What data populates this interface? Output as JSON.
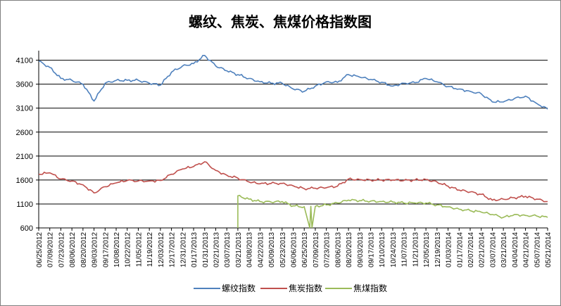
{
  "chart_data": {
    "type": "line",
    "title": "螺纹、焦炭、焦煤价格指数图",
    "xlabel": "",
    "ylabel": "",
    "ylim": [
      600,
      4100
    ],
    "yticks": [
      4100,
      3600,
      3100,
      2600,
      2100,
      1600,
      1100,
      600
    ],
    "grid": true,
    "legend_position": "bottom",
    "x_tick_labels": [
      "06/25/2012",
      "07/09/2012",
      "07/23/2012",
      "08/06/2012",
      "08/20/2012",
      "09/03/2012",
      "09/17/2012",
      "10/08/2012",
      "10/22/2012",
      "11/05/2012",
      "11/19/2012",
      "12/03/2012",
      "12/17/2012",
      "12/31/2012",
      "01/17/2013",
      "01/31/2013",
      "02/21/2013",
      "03/07/2013",
      "03/21/2013",
      "04/08/2013",
      "04/22/2013",
      "05/09/2013",
      "05/23/2013",
      "06/06/2013",
      "06/25/2013",
      "07/09/2013",
      "07/23/2013",
      "08/06/2013",
      "08/20/2013",
      "09/03/2013",
      "09/17/2013",
      "10/10/2013",
      "10/24/2013",
      "11/07/2013",
      "11/21/2013",
      "12/05/2013",
      "12/19/2013",
      "01/03/2014",
      "01/17/2014",
      "02/07/2014",
      "02/21/2014",
      "03/07/2014",
      "03/21/2014",
      "04/04/2014",
      "04/21/2014",
      "05/07/2014",
      "05/21/2014"
    ],
    "series": [
      {
        "name": "螺纹指数",
        "color": "#4f81bd",
        "x_index": [
          0,
          1,
          2,
          3,
          4,
          5,
          6,
          7,
          8,
          9,
          10,
          11,
          12,
          13,
          14,
          15,
          16,
          17,
          18,
          19,
          20,
          21,
          22,
          23,
          24,
          25,
          26,
          27,
          28,
          29,
          30,
          31,
          32,
          33,
          34,
          35,
          36,
          37,
          38,
          39,
          40,
          41,
          42,
          43,
          44,
          45,
          46
        ],
        "values": [
          4080,
          3950,
          3720,
          3680,
          3600,
          3250,
          3620,
          3680,
          3680,
          3680,
          3620,
          3580,
          3850,
          3980,
          4030,
          4200,
          3980,
          3880,
          3800,
          3720,
          3650,
          3620,
          3620,
          3500,
          3450,
          3560,
          3650,
          3640,
          3800,
          3750,
          3700,
          3640,
          3560,
          3620,
          3630,
          3720,
          3650,
          3550,
          3500,
          3450,
          3400,
          3230,
          3230,
          3300,
          3350,
          3200,
          3080
        ]
      },
      {
        "name": "焦炭指数",
        "color": "#c0504d",
        "x_index": [
          0,
          1,
          2,
          3,
          4,
          5,
          6,
          7,
          8,
          9,
          10,
          11,
          12,
          13,
          14,
          15,
          16,
          17,
          18,
          19,
          20,
          21,
          22,
          23,
          24,
          25,
          26,
          27,
          28,
          29,
          30,
          31,
          32,
          33,
          34,
          35,
          36,
          37,
          38,
          39,
          40,
          41,
          42,
          43,
          44,
          45,
          46
        ],
        "values": [
          1720,
          1750,
          1620,
          1580,
          1500,
          1330,
          1460,
          1540,
          1590,
          1580,
          1580,
          1590,
          1720,
          1830,
          1880,
          1980,
          1800,
          1700,
          1640,
          1560,
          1520,
          1530,
          1530,
          1480,
          1420,
          1430,
          1440,
          1470,
          1620,
          1610,
          1600,
          1600,
          1600,
          1590,
          1600,
          1610,
          1560,
          1470,
          1390,
          1350,
          1300,
          1180,
          1200,
          1230,
          1260,
          1200,
          1150
        ]
      },
      {
        "name": "焦煤指数",
        "color": "#9bbb59",
        "x_index": [
          18,
          18,
          19,
          20,
          21,
          22,
          23,
          24,
          24.5,
          24.6,
          24.7,
          25,
          26,
          27,
          28,
          29,
          30,
          31,
          32,
          33,
          34,
          35,
          36,
          37,
          38,
          39,
          40,
          41,
          42,
          43,
          44,
          45,
          46
        ],
        "values": [
          600,
          1270,
          1200,
          1150,
          1140,
          1150,
          1060,
          1040,
          600,
          1060,
          600,
          1050,
          1080,
          1120,
          1180,
          1170,
          1160,
          1150,
          1140,
          1120,
          1120,
          1120,
          1080,
          1040,
          990,
          960,
          930,
          880,
          820,
          880,
          860,
          850,
          820
        ]
      }
    ]
  }
}
